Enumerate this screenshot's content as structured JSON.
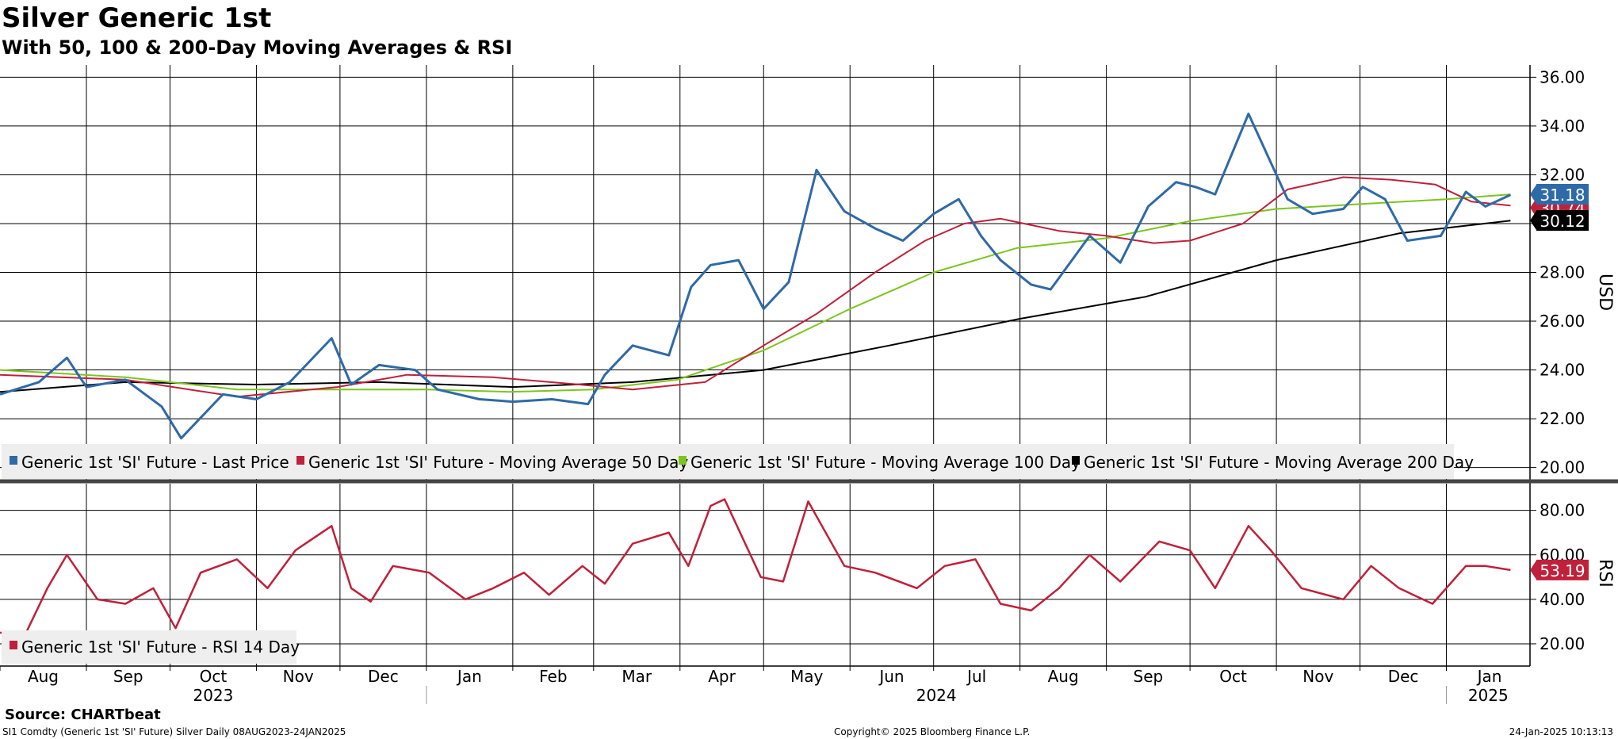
{
  "title": "Silver Generic 1st",
  "subtitle": "With 50, 100 & 200-Day Moving Averages & RSI",
  "source": "Source: CHARTbeat",
  "ticker_line": "SI1 Comdty (Generic 1st 'SI' Future) Silver  Daily 08AUG2023-24JAN2025",
  "copyright": "Copyright© 2025 Bloomberg Finance L.P.",
  "timestamp": "24-Jan-2025 10:13:13",
  "colors": {
    "price": "#2e6aa8",
    "ma50": "#c0203a",
    "ma100": "#7cc51d",
    "ma200": "#000000",
    "rsi": "#c0203a"
  },
  "chart_data": [
    {
      "type": "line",
      "title": "Silver Generic 1st",
      "ylabel": "USD",
      "ylim": [
        19.5,
        36.5
      ],
      "yticks": [
        "20.00",
        "22.00",
        "24.00",
        "26.00",
        "28.00",
        "30.00",
        "32.00",
        "34.00",
        "36.00"
      ],
      "grid": true,
      "legend_position": "bottom-left",
      "x_months": [
        "Aug",
        "Sep",
        "Oct",
        "Nov",
        "Dec",
        "Jan",
        "Feb",
        "Mar",
        "Apr",
        "May",
        "Jun",
        "Jul",
        "Aug",
        "Sep",
        "Oct",
        "Nov",
        "Dec",
        "Jan"
      ],
      "x_years": [
        "2023",
        "2024",
        "2025"
      ],
      "x_range": [
        "2023-08-01",
        "2025-01-31"
      ],
      "series": [
        {
          "name": "Generic 1st 'SI' Future - Last Price",
          "color": "#2e6aa8",
          "last_label": "31.18",
          "x": [
            "2023-08-01",
            "2023-08-15",
            "2023-08-25",
            "2023-09-01",
            "2023-09-15",
            "2023-09-28",
            "2023-10-05",
            "2023-10-20",
            "2023-11-01",
            "2023-11-13",
            "2023-11-28",
            "2023-12-05",
            "2023-12-15",
            "2023-12-28",
            "2024-01-05",
            "2024-01-20",
            "2024-02-01",
            "2024-02-15",
            "2024-02-28",
            "2024-03-05",
            "2024-03-15",
            "2024-03-28",
            "2024-04-05",
            "2024-04-12",
            "2024-04-22",
            "2024-05-01",
            "2024-05-10",
            "2024-05-20",
            "2024-05-30",
            "2024-06-10",
            "2024-06-20",
            "2024-07-01",
            "2024-07-10",
            "2024-07-18",
            "2024-07-25",
            "2024-08-05",
            "2024-08-12",
            "2024-08-26",
            "2024-09-06",
            "2024-09-16",
            "2024-09-26",
            "2024-10-03",
            "2024-10-10",
            "2024-10-22",
            "2024-10-30",
            "2024-11-05",
            "2024-11-14",
            "2024-11-25",
            "2024-12-02",
            "2024-12-10",
            "2024-12-18",
            "2024-12-30",
            "2025-01-08",
            "2025-01-15",
            "2025-01-24"
          ],
          "values": [
            23.0,
            23.5,
            24.5,
            23.3,
            23.6,
            22.5,
            21.2,
            23.0,
            22.8,
            23.5,
            25.3,
            23.4,
            24.2,
            24.0,
            23.2,
            22.8,
            22.7,
            22.8,
            22.6,
            23.8,
            25.0,
            24.6,
            27.4,
            28.3,
            28.5,
            26.5,
            27.6,
            32.2,
            30.5,
            29.8,
            29.3,
            30.4,
            31.0,
            29.5,
            28.5,
            27.5,
            27.3,
            29.5,
            28.4,
            30.7,
            31.7,
            31.5,
            31.2,
            34.5,
            32.5,
            31.0,
            30.4,
            30.6,
            31.5,
            31.0,
            29.3,
            29.5,
            31.3,
            30.7,
            31.18
          ]
        },
        {
          "name": "Generic 1st 'SI' Future - Moving Average 50 Day",
          "color": "#c0203a",
          "last_label": "30.74",
          "x": [
            "2023-08-01",
            "2023-09-15",
            "2023-10-25",
            "2023-11-30",
            "2023-12-25",
            "2024-01-25",
            "2024-02-25",
            "2024-03-15",
            "2024-04-10",
            "2024-05-01",
            "2024-05-20",
            "2024-06-10",
            "2024-06-28",
            "2024-07-12",
            "2024-07-25",
            "2024-08-15",
            "2024-09-01",
            "2024-09-18",
            "2024-10-01",
            "2024-10-20",
            "2024-11-05",
            "2024-11-25",
            "2024-12-12",
            "2024-12-28",
            "2025-01-10",
            "2025-01-24"
          ],
          "values": [
            23.8,
            23.6,
            22.9,
            23.3,
            23.8,
            23.7,
            23.4,
            23.2,
            23.5,
            25.0,
            26.3,
            28.0,
            29.3,
            30.0,
            30.2,
            29.7,
            29.5,
            29.2,
            29.3,
            30.0,
            31.4,
            31.9,
            31.8,
            31.6,
            30.9,
            30.74
          ]
        },
        {
          "name": "Generic 1st 'SI' Future - Moving Average 100 Day",
          "color": "#7cc51d",
          "last_label": "",
          "x": [
            "2023-08-01",
            "2023-09-15",
            "2023-10-25",
            "2023-12-01",
            "2024-01-01",
            "2024-01-31",
            "2024-03-01",
            "2024-03-31",
            "2024-05-01",
            "2024-06-01",
            "2024-07-01",
            "2024-07-31",
            "2024-09-01",
            "2024-10-01",
            "2024-11-01",
            "2024-12-01",
            "2025-01-01",
            "2025-01-24"
          ],
          "values": [
            24.0,
            23.7,
            23.2,
            23.2,
            23.2,
            23.1,
            23.2,
            23.6,
            24.8,
            26.5,
            28.0,
            29.0,
            29.4,
            30.1,
            30.6,
            30.8,
            31.0,
            31.2
          ]
        },
        {
          "name": "Generic 1st 'SI' Future - Moving Average 200 Day",
          "color": "#000000",
          "last_label": "30.12",
          "x": [
            "2023-08-01",
            "2023-09-15",
            "2023-11-01",
            "2023-12-15",
            "2024-02-01",
            "2024-03-15",
            "2024-05-01",
            "2024-06-15",
            "2024-08-01",
            "2024-09-15",
            "2024-11-01",
            "2024-12-15",
            "2025-01-24"
          ],
          "values": [
            23.1,
            23.5,
            23.4,
            23.5,
            23.3,
            23.5,
            24.0,
            25.0,
            26.1,
            27.0,
            28.5,
            29.6,
            30.12
          ]
        }
      ]
    },
    {
      "type": "line",
      "title": "RSI",
      "ylabel": "RSI",
      "ylim": [
        10,
        92
      ],
      "yticks": [
        "20.00",
        "40.00",
        "60.00",
        "80.00"
      ],
      "grid": true,
      "legend_position": "bottom-left",
      "series": [
        {
          "name": "Generic 1st 'SI' Future - RSI 14 Day",
          "color": "#c0203a",
          "last_label": "53.19",
          "x": [
            "2023-08-01",
            "2023-08-10",
            "2023-08-18",
            "2023-08-25",
            "2023-09-05",
            "2023-09-15",
            "2023-09-25",
            "2023-10-03",
            "2023-10-12",
            "2023-10-25",
            "2023-11-05",
            "2023-11-15",
            "2023-11-28",
            "2023-12-05",
            "2023-12-12",
            "2023-12-20",
            "2024-01-02",
            "2024-01-15",
            "2024-01-25",
            "2024-02-05",
            "2024-02-14",
            "2024-02-26",
            "2024-03-05",
            "2024-03-15",
            "2024-03-28",
            "2024-04-04",
            "2024-04-12",
            "2024-04-17",
            "2024-04-30",
            "2024-05-08",
            "2024-05-17",
            "2024-05-30",
            "2024-06-10",
            "2024-06-25",
            "2024-07-05",
            "2024-07-16",
            "2024-07-25",
            "2024-08-05",
            "2024-08-15",
            "2024-08-26",
            "2024-09-06",
            "2024-09-20",
            "2024-10-01",
            "2024-10-10",
            "2024-10-22",
            "2024-10-30",
            "2024-11-10",
            "2024-11-25",
            "2024-12-05",
            "2024-12-15",
            "2024-12-27",
            "2025-01-08",
            "2025-01-15",
            "2025-01-24"
          ],
          "values": [
            25,
            24,
            45,
            60,
            40,
            38,
            45,
            27,
            52,
            58,
            45,
            62,
            73,
            45,
            39,
            55,
            52,
            40,
            45,
            52,
            42,
            55,
            47,
            65,
            70,
            55,
            82,
            85,
            50,
            48,
            84,
            55,
            52,
            45,
            55,
            58,
            38,
            35,
            45,
            60,
            48,
            66,
            62,
            45,
            73,
            62,
            45,
            40,
            55,
            45,
            38,
            55,
            55,
            53.19
          ]
        }
      ]
    }
  ]
}
